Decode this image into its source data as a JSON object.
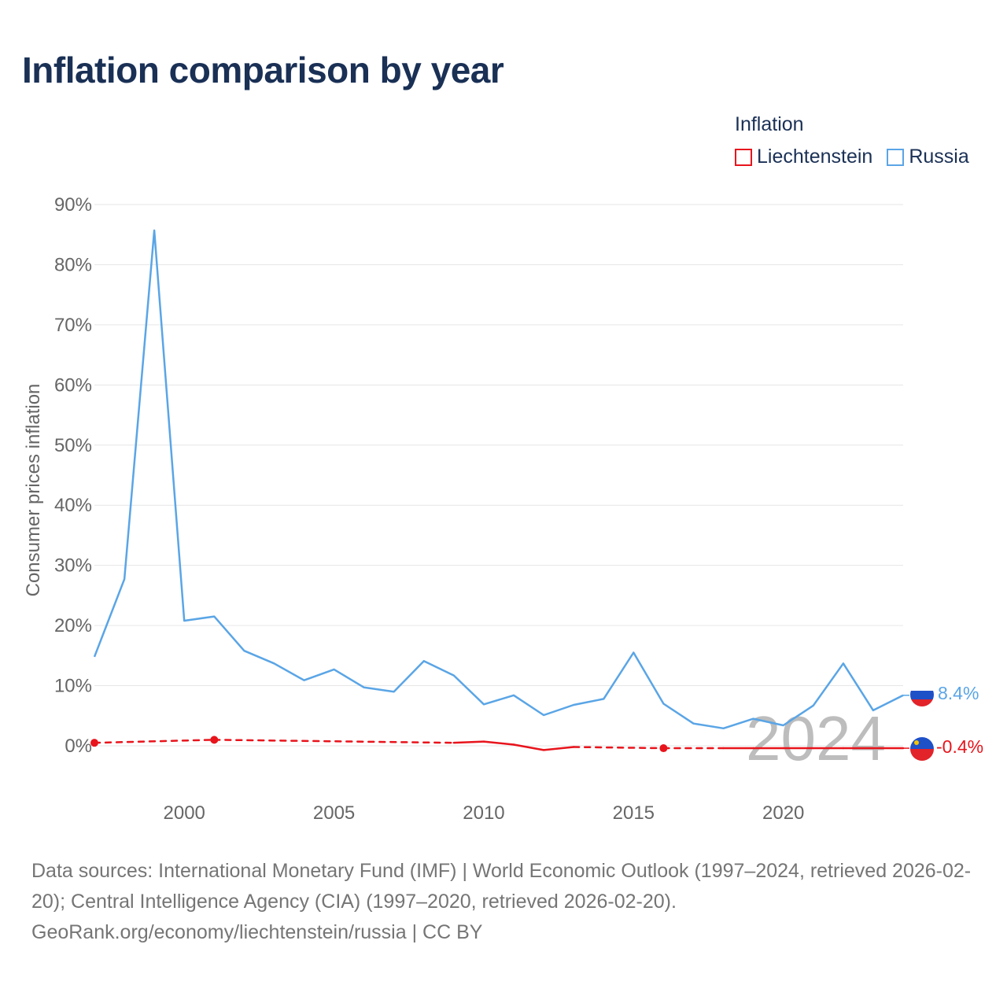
{
  "title": "Inflation comparison by year",
  "legend": {
    "title": "Inflation",
    "items": [
      {
        "label": "Liechtenstein",
        "color": "#e8141c"
      },
      {
        "label": "Russia",
        "color": "#5aa5e6"
      }
    ]
  },
  "footer": {
    "sources": "Data sources: International Monetary Fund (IMF) | World Economic Outlook (1997–2024, retrieved 2026-02-20); Central Intelligence Agency (CIA) (1997–2020, retrieved 2026-02-20).",
    "attribution": "GeoRank.org/economy/liechtenstein/russia | CC BY"
  },
  "chart_data": {
    "type": "line",
    "ylabel": "Consumer prices inflation",
    "xlabel": "",
    "ylim": [
      -6,
      90
    ],
    "xlim": [
      1997,
      2024
    ],
    "y_ticks": [
      0,
      10,
      20,
      30,
      40,
      50,
      60,
      70,
      80,
      90
    ],
    "y_tick_labels": [
      "0%",
      "10%",
      "20%",
      "30%",
      "40%",
      "50%",
      "60%",
      "70%",
      "80%",
      "90%"
    ],
    "x_ticks": [
      2000,
      2005,
      2010,
      2015,
      2020
    ],
    "x_tick_labels": [
      "2000",
      "2005",
      "2010",
      "2015",
      "2020"
    ],
    "watermark_year": "2024",
    "grid": true,
    "series": [
      {
        "name": "Russia",
        "color": "#5aa5e6",
        "x": [
          1997,
          1998,
          1999,
          2000,
          2001,
          2002,
          2003,
          2004,
          2005,
          2006,
          2007,
          2008,
          2009,
          2010,
          2011,
          2012,
          2013,
          2014,
          2015,
          2016,
          2017,
          2018,
          2019,
          2020,
          2021,
          2022,
          2023,
          2024
        ],
        "values": [
          14.8,
          27.7,
          85.7,
          20.8,
          21.5,
          15.8,
          13.7,
          10.9,
          12.7,
          9.7,
          9.0,
          14.1,
          11.7,
          6.9,
          8.4,
          5.1,
          6.8,
          7.8,
          15.5,
          7.0,
          3.7,
          2.9,
          4.5,
          3.4,
          6.7,
          13.7,
          5.9,
          8.4
        ],
        "end_label": "8.4%"
      },
      {
        "name": "Liechtenstein",
        "color": "#e8141c",
        "x": [
          1997,
          2001,
          2009,
          2010,
          2011,
          2012,
          2013,
          2016,
          2018,
          2019,
          2020,
          2021,
          2022,
          2023,
          2024
        ],
        "values": [
          0.5,
          1.0,
          0.5,
          0.7,
          0.2,
          -0.7,
          -0.2,
          -0.4,
          -0.4,
          -0.4,
          -0.4,
          -0.4,
          -0.4,
          -0.4,
          -0.4
        ],
        "markers_at": [
          1997,
          2001,
          2016
        ],
        "dashed_segments": [
          [
            1997,
            2009
          ],
          [
            2013,
            2018
          ]
        ],
        "end_label": "-0.4%"
      }
    ]
  }
}
